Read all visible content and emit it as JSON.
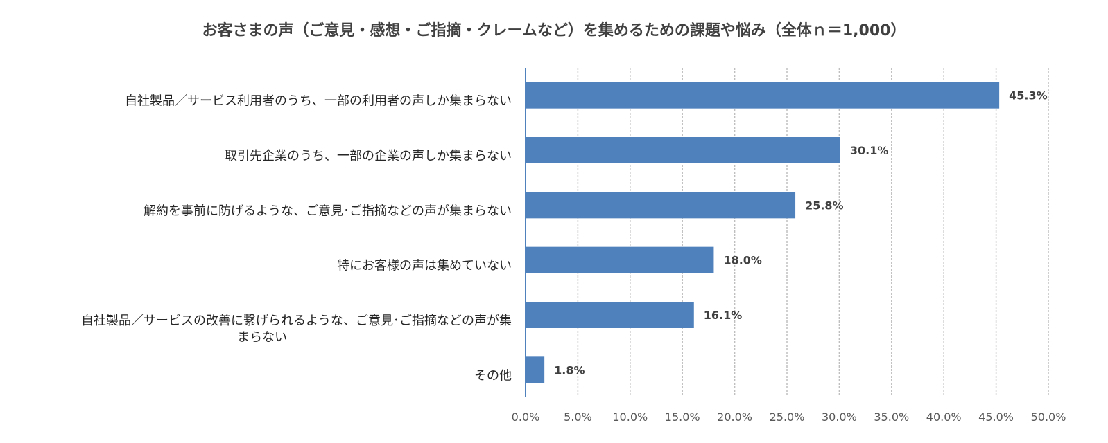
{
  "chart_data": {
    "type": "bar",
    "orientation": "horizontal",
    "title": "お客さまの声（ご意見・感想・ご指摘・クレームなど）を集めるための課題や悩み（全体ｎ＝1,000）",
    "categories": [
      [
        "自社製品／サービス利用者のうち、一部の利用者の声しか集まらない"
      ],
      [
        "取引先企業のうち、一部の企業の声しか集まらない"
      ],
      [
        "解約を事前に防げるような、ご意見･ご指摘などの声が集まらない"
      ],
      [
        "特にお客様の声は集めていない"
      ],
      [
        "自社製品／サービスの改善に繋げられるような、ご意見･ご指摘などの声が集",
        "まらない"
      ],
      [
        "その他"
      ]
    ],
    "values": [
      45.3,
      30.1,
      25.8,
      18.0,
      16.1,
      1.8
    ],
    "data_labels": [
      "45.3%",
      "30.1%",
      "25.8%",
      "18.0%",
      "16.1%",
      "1.8%"
    ],
    "xlim": [
      0,
      50
    ],
    "x_ticks": [
      "0.0%",
      "5.0%",
      "10.0%",
      "15.0%",
      "20.0%",
      "25.0%",
      "30.0%",
      "35.0%",
      "40.0%",
      "45.0%",
      "50.0%"
    ],
    "grid": "vertical dashed",
    "legend": "none",
    "colors": {
      "bar": "#4F81BD",
      "axis": "#4F81BD",
      "grid": "#BFBFBF"
    }
  }
}
